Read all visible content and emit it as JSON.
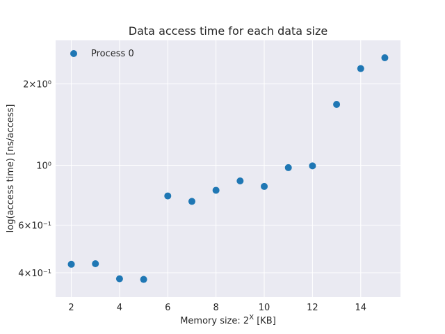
{
  "chart_data": {
    "type": "scatter",
    "title": "Data access time for each data size",
    "xlabel": "Memory size: 2^X [KB]",
    "ylabel": "log(access time) [ns/access]",
    "x_scale": "linear",
    "y_scale": "log",
    "xlim": [
      1.35,
      15.65
    ],
    "ylim": [
      0.325,
      2.9
    ],
    "x_ticks": [
      2,
      4,
      6,
      8,
      10,
      12,
      14
    ],
    "y_ticks": [
      {
        "value": 0.4,
        "label": "4×10⁻¹"
      },
      {
        "value": 0.6,
        "label": "6×10⁻¹"
      },
      {
        "value": 1.0,
        "label": "10⁰"
      },
      {
        "value": 2.0,
        "label": "2×10⁰"
      }
    ],
    "grid": true,
    "legend_position": "upper-left",
    "series": [
      {
        "name": "Process 0",
        "color": "#1f77b4",
        "x": [
          2,
          3,
          4,
          5,
          6,
          7,
          8,
          9,
          10,
          11,
          12,
          13,
          14,
          15
        ],
        "y": [
          0.43,
          0.432,
          0.38,
          0.378,
          0.77,
          0.735,
          0.808,
          0.875,
          0.835,
          0.98,
          0.995,
          1.68,
          2.28,
          2.5
        ]
      }
    ]
  }
}
